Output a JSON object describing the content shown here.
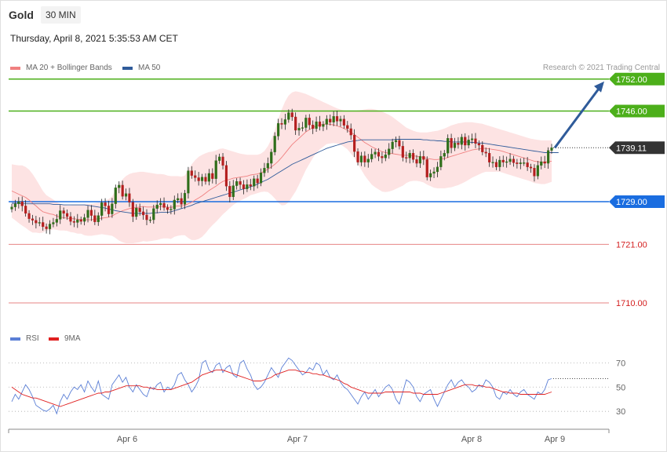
{
  "header": {
    "instrument": "Gold",
    "timeframe": "30 MIN",
    "datetime": "Thursday, April 8, 2021 5:35:53 AM CET",
    "credit": "Research © 2021 Trading Central"
  },
  "legend_main": [
    {
      "label": "MA 20 + Bollinger Bands",
      "color": "#f08080"
    },
    {
      "label": "MA 50",
      "color": "#2f5b9a"
    }
  ],
  "legend_rsi": [
    {
      "label": "RSI",
      "color": "#5b7fd6"
    },
    {
      "label": "9MA",
      "color": "#e02020"
    }
  ],
  "chart_data": [
    {
      "type": "candlestick",
      "ylim": [
        1705,
        1758
      ],
      "x_ticks": [
        "Apr 6",
        "Apr 7",
        "Apr 8",
        "Apr 9"
      ],
      "levels": [
        {
          "value": 1752.0,
          "label": "1752.00",
          "kind": "resistance",
          "color": "#4caf1a"
        },
        {
          "value": 1746.0,
          "label": "1746.00",
          "kind": "resistance",
          "color": "#4caf1a"
        },
        {
          "value": 1739.11,
          "label": "1739.11",
          "kind": "last",
          "color": "#333333"
        },
        {
          "value": 1729.0,
          "label": "1729.00",
          "kind": "pivot",
          "color": "#1a6de0"
        },
        {
          "value": 1721.0,
          "label": "1721.00",
          "kind": "support",
          "color": "#d42020"
        },
        {
          "value": 1710.0,
          "label": "1710.00",
          "kind": "support",
          "color": "#d42020"
        }
      ],
      "closes": [
        1728.0,
        1728.6,
        1729.0,
        1728.2,
        1726.8,
        1725.8,
        1725.5,
        1725.0,
        1725.1,
        1724.3,
        1723.9,
        1724.8,
        1725.1,
        1725.7,
        1727.3,
        1726.8,
        1726.2,
        1725.3,
        1725.1,
        1725.6,
        1725.3,
        1726.0,
        1727.4,
        1726.4,
        1725.2,
        1726.4,
        1728.8,
        1728.2,
        1726.7,
        1728.6,
        1731.6,
        1732.1,
        1730.0,
        1730.5,
        1728.9,
        1726.2,
        1727.8,
        1727.1,
        1726.5,
        1725.6,
        1725.6,
        1727.7,
        1728.4,
        1728.7,
        1727.9,
        1727.5,
        1727.6,
        1729.3,
        1729.6,
        1728.5,
        1730.6,
        1734.8,
        1733.9,
        1733.5,
        1732.9,
        1733.6,
        1732.8,
        1734.3,
        1733.3,
        1736.7,
        1737.4,
        1735.8,
        1731.9,
        1729.9,
        1732.0,
        1732.8,
        1732.2,
        1731.4,
        1732.2,
        1731.9,
        1733.3,
        1732.5,
        1734.4,
        1735.3,
        1736.2,
        1738.3,
        1741.3,
        1743.7,
        1743.5,
        1744.4,
        1745.7,
        1744.9,
        1742.4,
        1742.8,
        1742.9,
        1744.7,
        1743.4,
        1742.7,
        1744.0,
        1743.1,
        1743.5,
        1744.5,
        1743.9,
        1745.0,
        1744.1,
        1744.5,
        1743.3,
        1742.7,
        1741.5,
        1738.4,
        1736.4,
        1737.6,
        1736.4,
        1737.0,
        1737.9,
        1738.3,
        1737.5,
        1737.2,
        1737.8,
        1738.9,
        1740.2,
        1740.5,
        1739.4,
        1737.3,
        1737.2,
        1738.1,
        1736.9,
        1736.2,
        1737.5,
        1736.9,
        1733.6,
        1734.3,
        1734.6,
        1735.5,
        1737.5,
        1738.1,
        1740.9,
        1739.1,
        1740.0,
        1739.7,
        1741.1,
        1739.6,
        1740.6,
        1740.8,
        1739.9,
        1739.6,
        1738.3,
        1738.1,
        1736.4,
        1736.4,
        1735.5,
        1736.8,
        1736.4,
        1736.5,
        1737.0,
        1736.3,
        1736.1,
        1736.3,
        1736.3,
        1735.5,
        1735.3,
        1733.8,
        1735.8,
        1736.5,
        1736.2,
        1738.6,
        1739.11
      ],
      "ma20": [
        1731.0,
        1730.7,
        1730.4,
        1730.1,
        1729.8,
        1729.3,
        1728.7,
        1728.2,
        1727.6,
        1727.1,
        1726.9,
        1726.7,
        1726.6,
        1726.3,
        1726.1,
        1726.0,
        1725.9,
        1725.8,
        1725.8,
        1725.7,
        1725.7,
        1725.6,
        1725.6,
        1725.6,
        1725.7,
        1725.8,
        1725.9,
        1726.0,
        1726.1,
        1726.3,
        1726.7,
        1727.0,
        1727.3,
        1727.5,
        1727.7,
        1727.8,
        1727.9,
        1728.0,
        1728.1,
        1728.0,
        1728.0,
        1728.0,
        1728.0,
        1728.1,
        1728.1,
        1728.0,
        1727.9,
        1728.1,
        1728.2,
        1728.2,
        1728.3,
        1728.6,
        1728.9,
        1729.3,
        1729.7,
        1730.1,
        1730.6,
        1731.1,
        1731.5,
        1731.9,
        1732.4,
        1732.8,
        1733.0,
        1733.2,
        1733.4,
        1733.5,
        1733.6,
        1733.7,
        1733.8,
        1734.0,
        1734.1,
        1734.2,
        1734.4,
        1734.7,
        1735.1,
        1735.5,
        1736.0,
        1736.6,
        1737.3,
        1738.1,
        1738.9,
        1739.7,
        1740.3,
        1740.9,
        1741.5,
        1742.1,
        1742.5,
        1742.9,
        1743.2,
        1743.4,
        1743.5,
        1743.6,
        1743.5,
        1743.4,
        1743.2,
        1743.0,
        1742.7,
        1742.4,
        1742.0,
        1741.6,
        1741.1,
        1740.6,
        1740.1,
        1739.7,
        1739.3,
        1739.0,
        1738.7,
        1738.4,
        1738.2,
        1738.1,
        1738.0,
        1737.9,
        1737.8,
        1737.7,
        1737.7,
        1737.7,
        1737.6,
        1737.5,
        1737.4,
        1737.3,
        1737.1,
        1737.0,
        1736.9,
        1736.9,
        1737.0,
        1737.1,
        1737.3,
        1737.5,
        1737.7,
        1737.9,
        1738.1,
        1738.3,
        1738.5,
        1738.7,
        1738.8,
        1738.9,
        1739.0,
        1739.0,
        1738.9,
        1738.8,
        1738.7,
        1738.6,
        1738.4,
        1738.2,
        1738.0,
        1737.8,
        1737.6,
        1737.4,
        1737.2,
        1737.0,
        1736.8,
        1736.6,
        1736.5,
        1736.4,
        1736.4,
        1736.5,
        1736.6
      ],
      "bb_upper": [
        1736.0,
        1735.9,
        1735.8,
        1735.8,
        1735.5,
        1735.0,
        1734.2,
        1733.2,
        1732.1,
        1731.0,
        1730.2,
        1729.8,
        1729.4,
        1728.9,
        1728.6,
        1728.4,
        1728.3,
        1728.3,
        1728.4,
        1728.4,
        1728.4,
        1728.5,
        1728.6,
        1728.6,
        1728.7,
        1728.8,
        1728.9,
        1729.2,
        1729.5,
        1730.0,
        1731.2,
        1732.3,
        1733.2,
        1733.8,
        1734.2,
        1734.4,
        1734.5,
        1734.6,
        1734.6,
        1734.5,
        1734.4,
        1734.3,
        1734.2,
        1734.2,
        1734.1,
        1733.9,
        1733.8,
        1733.8,
        1733.8,
        1733.7,
        1733.9,
        1735.0,
        1736.0,
        1736.8,
        1737.4,
        1737.8,
        1738.1,
        1738.3,
        1738.4,
        1738.6,
        1738.9,
        1739.0,
        1738.8,
        1738.6,
        1738.4,
        1738.2,
        1738.0,
        1737.9,
        1737.8,
        1737.8,
        1737.8,
        1737.8,
        1738.0,
        1738.5,
        1739.4,
        1740.7,
        1742.4,
        1744.4,
        1746.3,
        1747.8,
        1748.9,
        1749.5,
        1749.7,
        1749.6,
        1749.4,
        1749.2,
        1748.9,
        1748.6,
        1748.3,
        1748.0,
        1747.7,
        1747.4,
        1747.1,
        1746.8,
        1746.5,
        1746.3,
        1746.1,
        1746.0,
        1746.0,
        1746.0,
        1746.1,
        1746.2,
        1746.3,
        1746.4,
        1746.4,
        1746.3,
        1746.1,
        1745.9,
        1745.6,
        1745.3,
        1744.9,
        1744.4,
        1743.9,
        1743.4,
        1742.9,
        1742.6,
        1742.3,
        1742.1,
        1742.0,
        1742.0,
        1742.0,
        1742.1,
        1742.2,
        1742.3,
        1742.5,
        1742.7,
        1743.0,
        1743.3,
        1743.5,
        1743.7,
        1743.8,
        1743.9,
        1743.9,
        1743.9,
        1743.8,
        1743.7,
        1743.6,
        1743.4,
        1743.2,
        1743.0,
        1742.8,
        1742.6,
        1742.4,
        1742.2,
        1742.0,
        1741.8,
        1741.6,
        1741.4,
        1741.2,
        1741.0,
        1740.8,
        1740.7,
        1740.6,
        1740.5,
        1740.5,
        1740.5,
        1740.5
      ],
      "bb_lower": [
        1726.0,
        1725.5,
        1725.0,
        1724.5,
        1724.1,
        1723.6,
        1723.2,
        1723.2,
        1723.1,
        1723.2,
        1723.6,
        1723.6,
        1723.8,
        1723.7,
        1723.6,
        1723.6,
        1723.5,
        1723.3,
        1723.2,
        1723.0,
        1723.0,
        1722.7,
        1722.6,
        1722.6,
        1722.7,
        1722.8,
        1722.9,
        1722.8,
        1722.7,
        1722.6,
        1722.2,
        1721.7,
        1721.4,
        1721.2,
        1721.2,
        1721.2,
        1721.3,
        1721.4,
        1721.6,
        1721.5,
        1721.6,
        1721.7,
        1721.8,
        1722.0,
        1722.1,
        1722.1,
        1722.0,
        1722.4,
        1722.6,
        1722.7,
        1722.7,
        1722.2,
        1721.8,
        1721.8,
        1722.0,
        1722.4,
        1723.1,
        1723.9,
        1724.6,
        1725.2,
        1725.9,
        1726.6,
        1727.2,
        1727.8,
        1728.4,
        1728.8,
        1729.2,
        1729.5,
        1729.8,
        1730.2,
        1730.4,
        1730.6,
        1730.8,
        1730.9,
        1730.8,
        1730.3,
        1729.6,
        1728.8,
        1728.3,
        1728.4,
        1728.9,
        1729.9,
        1730.9,
        1732.2,
        1733.6,
        1735.0,
        1736.1,
        1737.2,
        1738.1,
        1738.8,
        1739.3,
        1739.8,
        1739.9,
        1740.0,
        1739.9,
        1739.7,
        1739.3,
        1738.8,
        1738.0,
        1737.2,
        1736.1,
        1735.0,
        1733.9,
        1733.0,
        1732.2,
        1731.7,
        1731.3,
        1730.9,
        1730.8,
        1730.9,
        1731.1,
        1731.4,
        1731.7,
        1732.0,
        1732.5,
        1732.8,
        1732.9,
        1732.9,
        1732.8,
        1732.6,
        1732.2,
        1731.9,
        1731.6,
        1731.5,
        1731.5,
        1731.5,
        1731.6,
        1731.7,
        1731.9,
        1732.1,
        1732.4,
        1732.7,
        1733.1,
        1733.5,
        1733.8,
        1734.1,
        1734.4,
        1734.6,
        1734.6,
        1734.6,
        1734.6,
        1734.6,
        1734.4,
        1734.2,
        1734.0,
        1733.8,
        1733.6,
        1733.4,
        1733.2,
        1733.0,
        1732.8,
        1732.5,
        1732.4,
        1732.3,
        1732.3,
        1732.5,
        1732.7
      ],
      "ma50": [
        1728.7,
        1728.7,
        1728.7,
        1728.6,
        1728.6,
        1728.6,
        1728.6,
        1728.6,
        1728.6,
        1728.6,
        1728.6,
        1728.6,
        1728.5,
        1728.5,
        1728.5,
        1728.4,
        1728.4,
        1728.4,
        1728.4,
        1728.4,
        1728.4,
        1728.4,
        1728.3,
        1728.2,
        1728.1,
        1728.0,
        1727.9,
        1727.8,
        1727.6,
        1727.5,
        1727.3,
        1727.2,
        1727.1,
        1727.0,
        1726.9,
        1726.8,
        1726.8,
        1726.8,
        1726.8,
        1726.8,
        1726.8,
        1726.9,
        1726.9,
        1727.0,
        1727.0,
        1727.0,
        1727.1,
        1727.3,
        1727.5,
        1727.7,
        1727.9,
        1728.1,
        1728.3,
        1728.6,
        1728.8,
        1729.0,
        1729.2,
        1729.4,
        1729.6,
        1729.8,
        1730.0,
        1730.2,
        1730.4,
        1730.6,
        1730.8,
        1731.0,
        1731.2,
        1731.4,
        1731.6,
        1731.8,
        1732.0,
        1732.3,
        1732.6,
        1732.9,
        1733.2,
        1733.6,
        1734.0,
        1734.4,
        1734.8,
        1735.2,
        1735.6,
        1736.0,
        1736.3,
        1736.6,
        1736.9,
        1737.2,
        1737.5,
        1737.8,
        1738.1,
        1738.4,
        1738.7,
        1739.0,
        1739.2,
        1739.4,
        1739.6,
        1739.8,
        1740.0,
        1740.2,
        1740.3,
        1740.4,
        1740.5,
        1740.6,
        1740.6,
        1740.6,
        1740.6,
        1740.6,
        1740.6,
        1740.6,
        1740.6,
        1740.6,
        1740.6,
        1740.7,
        1740.7,
        1740.7,
        1740.7,
        1740.7,
        1740.7,
        1740.7,
        1740.7,
        1740.6,
        1740.6,
        1740.5,
        1740.5,
        1740.4,
        1740.4,
        1740.3,
        1740.3,
        1740.2,
        1740.2,
        1740.2,
        1740.2,
        1740.2,
        1740.2,
        1740.1,
        1740.1,
        1740.0,
        1740.0,
        1739.9,
        1739.8,
        1739.7,
        1739.6,
        1739.5,
        1739.4,
        1739.3,
        1739.2,
        1739.1,
        1739.0,
        1738.9,
        1738.8,
        1738.7,
        1738.6,
        1738.5,
        1738.4,
        1738.3,
        1738.2,
        1738.2,
        1738.2,
        1738.2,
        1738.2
      ],
      "projection": {
        "from": 1739.11,
        "to": 1752.0
      }
    },
    {
      "type": "line",
      "ylim": [
        23,
        78
      ],
      "y_ticks": [
        70,
        50,
        30
      ],
      "series": [
        {
          "name": "RSI",
          "color": "#5b7fd6",
          "values": [
            38,
            44,
            40,
            46,
            52,
            48,
            42,
            35,
            33,
            31,
            30,
            32,
            35,
            28,
            38,
            44,
            40,
            46,
            50,
            48,
            52,
            46,
            55,
            50,
            46,
            55,
            44,
            42,
            40,
            52,
            56,
            60,
            54,
            58,
            50,
            46,
            52,
            48,
            44,
            42,
            50,
            48,
            52,
            54,
            46,
            50,
            48,
            52,
            60,
            62,
            56,
            52,
            46,
            50,
            56,
            70,
            72,
            64,
            62,
            68,
            70,
            62,
            66,
            68,
            60,
            58,
            70,
            72,
            65,
            60,
            52,
            48,
            50,
            54,
            60,
            66,
            62,
            58,
            66,
            70,
            74,
            72,
            68,
            64,
            60,
            62,
            66,
            64,
            70,
            68,
            60,
            64,
            58,
            56,
            60,
            54,
            50,
            48,
            44,
            40,
            36,
            42,
            46,
            40,
            44,
            48,
            42,
            46,
            50,
            52,
            48,
            40,
            36,
            46,
            56,
            54,
            50,
            42,
            38,
            44,
            46,
            48,
            40,
            34,
            40,
            46,
            52,
            56,
            50,
            54,
            56,
            52,
            50,
            46,
            48,
            52,
            50,
            56,
            54,
            50,
            42,
            40,
            46,
            44,
            48,
            44,
            42,
            46,
            48,
            44,
            42,
            40,
            46,
            44,
            48,
            56,
            57
          ]
        },
        {
          "name": "9MA",
          "color": "#e02020",
          "values": [
            50,
            48,
            46,
            44,
            43,
            42,
            41,
            41,
            40,
            39,
            38,
            37,
            36,
            35,
            34,
            35,
            36,
            37,
            38,
            39,
            40,
            41,
            42,
            43,
            44,
            45,
            45,
            46,
            46,
            47,
            48,
            49,
            50,
            51,
            51,
            51,
            51,
            51,
            50,
            50,
            49,
            49,
            48,
            48,
            48,
            48,
            48,
            49,
            50,
            51,
            52,
            53,
            54,
            56,
            58,
            60,
            61,
            62,
            63,
            64,
            64,
            64,
            63,
            62,
            61,
            60,
            59,
            58,
            57,
            56,
            55,
            55,
            55,
            56,
            57,
            58,
            60,
            61,
            62,
            63,
            64,
            64,
            64,
            63,
            63,
            62,
            62,
            61,
            61,
            60,
            60,
            59,
            58,
            57,
            56,
            55,
            53,
            52,
            50,
            49,
            48,
            47,
            46,
            45,
            45,
            45,
            45,
            45,
            46,
            46,
            46,
            46,
            46,
            46,
            46,
            46,
            45,
            45,
            45,
            44,
            44,
            44,
            44,
            44,
            45,
            46,
            47,
            48,
            49,
            50,
            51,
            52,
            52,
            52,
            51,
            51,
            51,
            50,
            50,
            49,
            48,
            47,
            46,
            46,
            45,
            45,
            45,
            44,
            44,
            44,
            44,
            44,
            44,
            44,
            44,
            45,
            46
          ]
        }
      ]
    }
  ]
}
